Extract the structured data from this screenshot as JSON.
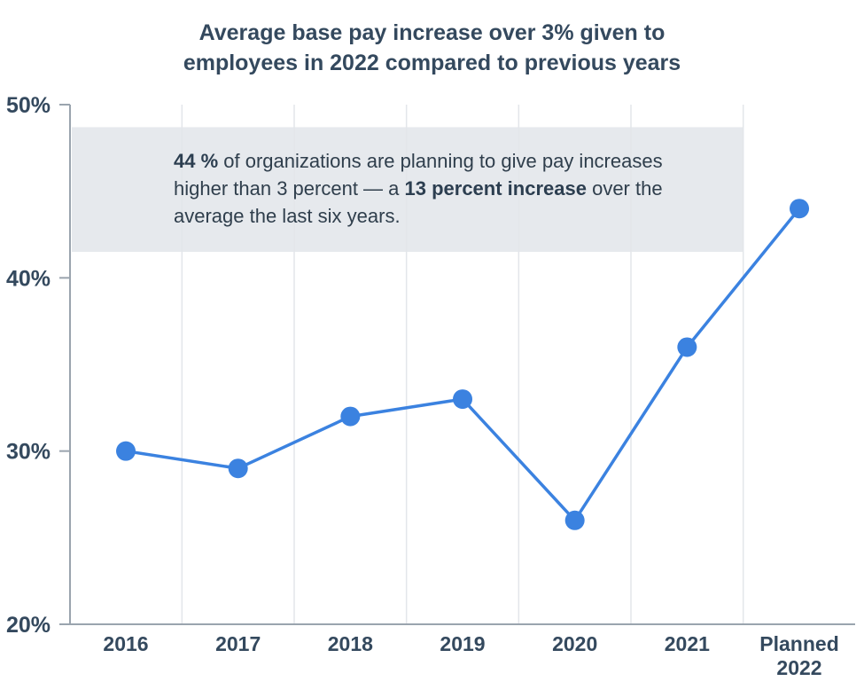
{
  "chart_data": {
    "type": "line",
    "title_lines": [
      "Average base pay increase over 3% given to",
      "employees in 2022 compared to previous years"
    ],
    "categories": [
      "2016",
      "2017",
      "2018",
      "2019",
      "2020",
      "2021",
      "Planned 2022"
    ],
    "category_lines": [
      [
        "2016"
      ],
      [
        "2017"
      ],
      [
        "2018"
      ],
      [
        "2019"
      ],
      [
        "2020"
      ],
      [
        "2021"
      ],
      [
        "Planned",
        "2022"
      ]
    ],
    "values": [
      30,
      29,
      32,
      33,
      26,
      36,
      44
    ],
    "ylim": [
      20,
      50
    ],
    "yticks": [
      20,
      30,
      40,
      50
    ],
    "ytick_labels": [
      "20%",
      "30%",
      "40%",
      "50%"
    ],
    "xlabel": "",
    "ylabel": "",
    "grid": "vertical",
    "highlight_band": [
      41.5,
      48.7
    ],
    "annotation": {
      "part1": "44 %",
      "part2": " of organizations are planning to give pay increases higher than 3 percent — a ",
      "part3": "13 percent increase",
      "part4": " over the average the last six years."
    },
    "colors": {
      "line": "#3b82e0",
      "marker": "#3b82e0",
      "band": "#e6e9ed",
      "grid": "#e3e6ea",
      "axis": "#9aa4ae",
      "text": "#2f3e4c"
    }
  }
}
